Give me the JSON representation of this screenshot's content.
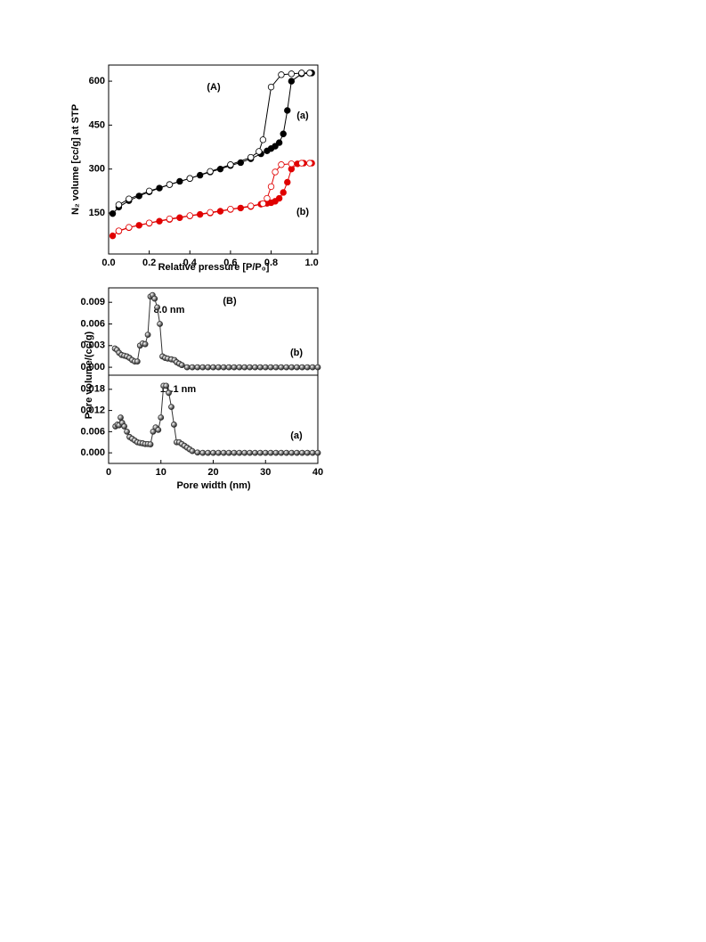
{
  "chart_data": [
    {
      "type": "line",
      "x_label": "Relative pressure [P/P₀]",
      "y_label": "N₂ volume [cc/g] at STP",
      "annotations": [
        "(A)",
        "(a)",
        "(b)"
      ],
      "xlim": [
        0,
        1.03
      ],
      "ylim": [
        10,
        655
      ],
      "xticks": [
        {
          "value": 0,
          "label": "0.0"
        },
        0.2,
        0.4,
        0.6,
        0.8,
        {
          "value": 1,
          "label": "1.0"
        }
      ],
      "yticks": [
        150,
        300,
        450,
        600
      ],
      "series": [
        {
          "color": "#000000",
          "marker": "filled",
          "x": [
            0.02,
            0.05,
            0.1,
            0.15,
            0.2,
            0.25,
            0.3,
            0.35,
            0.4,
            0.45,
            0.5,
            0.55,
            0.6,
            0.65,
            0.7,
            0.75,
            0.78,
            0.8,
            0.82,
            0.84,
            0.86,
            0.88,
            0.9,
            0.95,
            1.0
          ],
          "values": [
            148,
            170,
            192,
            208,
            222,
            235,
            247,
            258,
            268,
            279,
            290,
            300,
            312,
            322,
            335,
            352,
            362,
            370,
            378,
            390,
            420,
            500,
            600,
            625,
            628
          ]
        },
        {
          "color": "#000000",
          "marker": "open",
          "x": [
            0.99,
            0.95,
            0.9,
            0.85,
            0.8,
            0.76,
            0.74,
            0.7,
            0.6,
            0.5,
            0.4,
            0.3,
            0.2,
            0.1,
            0.05
          ],
          "values": [
            628,
            628,
            625,
            622,
            580,
            400,
            360,
            340,
            315,
            292,
            268,
            247,
            225,
            198,
            178
          ]
        },
        {
          "color": "#e00000",
          "marker": "filled",
          "x": [
            0.02,
            0.05,
            0.1,
            0.15,
            0.2,
            0.25,
            0.3,
            0.35,
            0.4,
            0.45,
            0.5,
            0.55,
            0.6,
            0.65,
            0.7,
            0.75,
            0.78,
            0.8,
            0.82,
            0.84,
            0.86,
            0.88,
            0.9,
            0.93,
            0.96,
            1.0
          ],
          "values": [
            72,
            88,
            100,
            108,
            115,
            122,
            128,
            134,
            140,
            145,
            150,
            156,
            162,
            167,
            172,
            180,
            183,
            185,
            190,
            200,
            220,
            255,
            300,
            318,
            320,
            320
          ]
        },
        {
          "color": "#e00000",
          "marker": "open",
          "x": [
            0.99,
            0.95,
            0.9,
            0.85,
            0.82,
            0.8,
            0.78,
            0.76,
            0.7,
            0.6,
            0.5,
            0.4,
            0.3,
            0.2,
            0.1,
            0.05
          ],
          "values": [
            320,
            320,
            318,
            315,
            290,
            240,
            200,
            182,
            174,
            163,
            152,
            141,
            130,
            116,
            101,
            89
          ]
        }
      ]
    },
    {
      "type": "line",
      "y_label": "Pore volume/(cc/g)",
      "annotations": [
        "(B)",
        "8.0 nm",
        "(b)"
      ],
      "xlim": [
        0,
        40
      ],
      "ylim": [
        -0.0011,
        0.011
      ],
      "yticks": [
        {
          "value": 0,
          "label": "0.000"
        },
        0.003,
        0.006,
        0.009
      ],
      "series": [
        {
          "color": "#333333",
          "marker": "sphere",
          "x": [
            1.2,
            1.6,
            2,
            2.5,
            3,
            3.5,
            4,
            4.5,
            5,
            5.5,
            6,
            6.5,
            7,
            7.5,
            8,
            8.4,
            8.8,
            9.3,
            9.8,
            10.3,
            10.8,
            11.3,
            12,
            12.6,
            13,
            13.5,
            14,
            15,
            16,
            17,
            18,
            19,
            20,
            21,
            22,
            23,
            24,
            25,
            26,
            27,
            28,
            29,
            30,
            31,
            32,
            33,
            34,
            35,
            36,
            37,
            38,
            39,
            40
          ],
          "values": [
            0.0026,
            0.0024,
            0.002,
            0.0017,
            0.0016,
            0.0015,
            0.0013,
            0.001,
            0.0008,
            0.0008,
            0.003,
            0.0033,
            0.0032,
            0.0045,
            0.0098,
            0.01,
            0.0095,
            0.0083,
            0.006,
            0.0015,
            0.0013,
            0.0012,
            0.0011,
            0.001,
            0.0007,
            0.0005,
            0.0003,
            0,
            0,
            0,
            0,
            0,
            0,
            0,
            0,
            0,
            0,
            0,
            0,
            0,
            0,
            0,
            0,
            0,
            0,
            0,
            0,
            0,
            0,
            0,
            0,
            0,
            0
          ]
        }
      ]
    },
    {
      "type": "line",
      "x_label": "Pore width (nm)",
      "annotations": [
        "11.1 nm",
        "(a)"
      ],
      "xlim": [
        0,
        40
      ],
      "ylim": [
        -0.003,
        0.022
      ],
      "xticks": [
        0,
        10,
        20,
        30,
        40
      ],
      "yticks": [
        {
          "value": 0,
          "label": "0.000"
        },
        0.006,
        0.012,
        0.018
      ],
      "series": [
        {
          "color": "#333333",
          "marker": "sphere",
          "x": [
            1.3,
            1.7,
            2,
            2.3,
            2.6,
            3,
            3.5,
            4,
            4.5,
            5,
            5.5,
            6,
            6.5,
            7,
            7.5,
            8,
            8.5,
            9,
            9.5,
            10,
            10.5,
            11,
            11.5,
            12,
            12.5,
            13,
            13.5,
            14,
            14.5,
            15,
            15.5,
            16,
            17,
            18,
            19,
            20,
            21,
            22,
            23,
            24,
            25,
            26,
            27,
            28,
            29,
            30,
            31,
            32,
            33,
            34,
            35,
            36,
            37,
            38,
            39,
            40
          ],
          "values": [
            0.0075,
            0.008,
            0.0078,
            0.01,
            0.0085,
            0.0075,
            0.006,
            0.0045,
            0.004,
            0.0035,
            0.003,
            0.0028,
            0.0027,
            0.0025,
            0.0025,
            0.0024,
            0.006,
            0.0072,
            0.0065,
            0.01,
            0.019,
            0.019,
            0.017,
            0.013,
            0.008,
            0.003,
            0.003,
            0.0025,
            0.002,
            0.0015,
            0.001,
            0.0005,
            0.0001,
            0,
            0,
            0,
            0,
            0,
            0,
            0,
            0,
            0,
            0,
            0,
            0,
            0,
            0,
            0,
            0,
            0,
            0,
            0,
            0,
            0,
            0,
            0
          ]
        }
      ]
    }
  ]
}
